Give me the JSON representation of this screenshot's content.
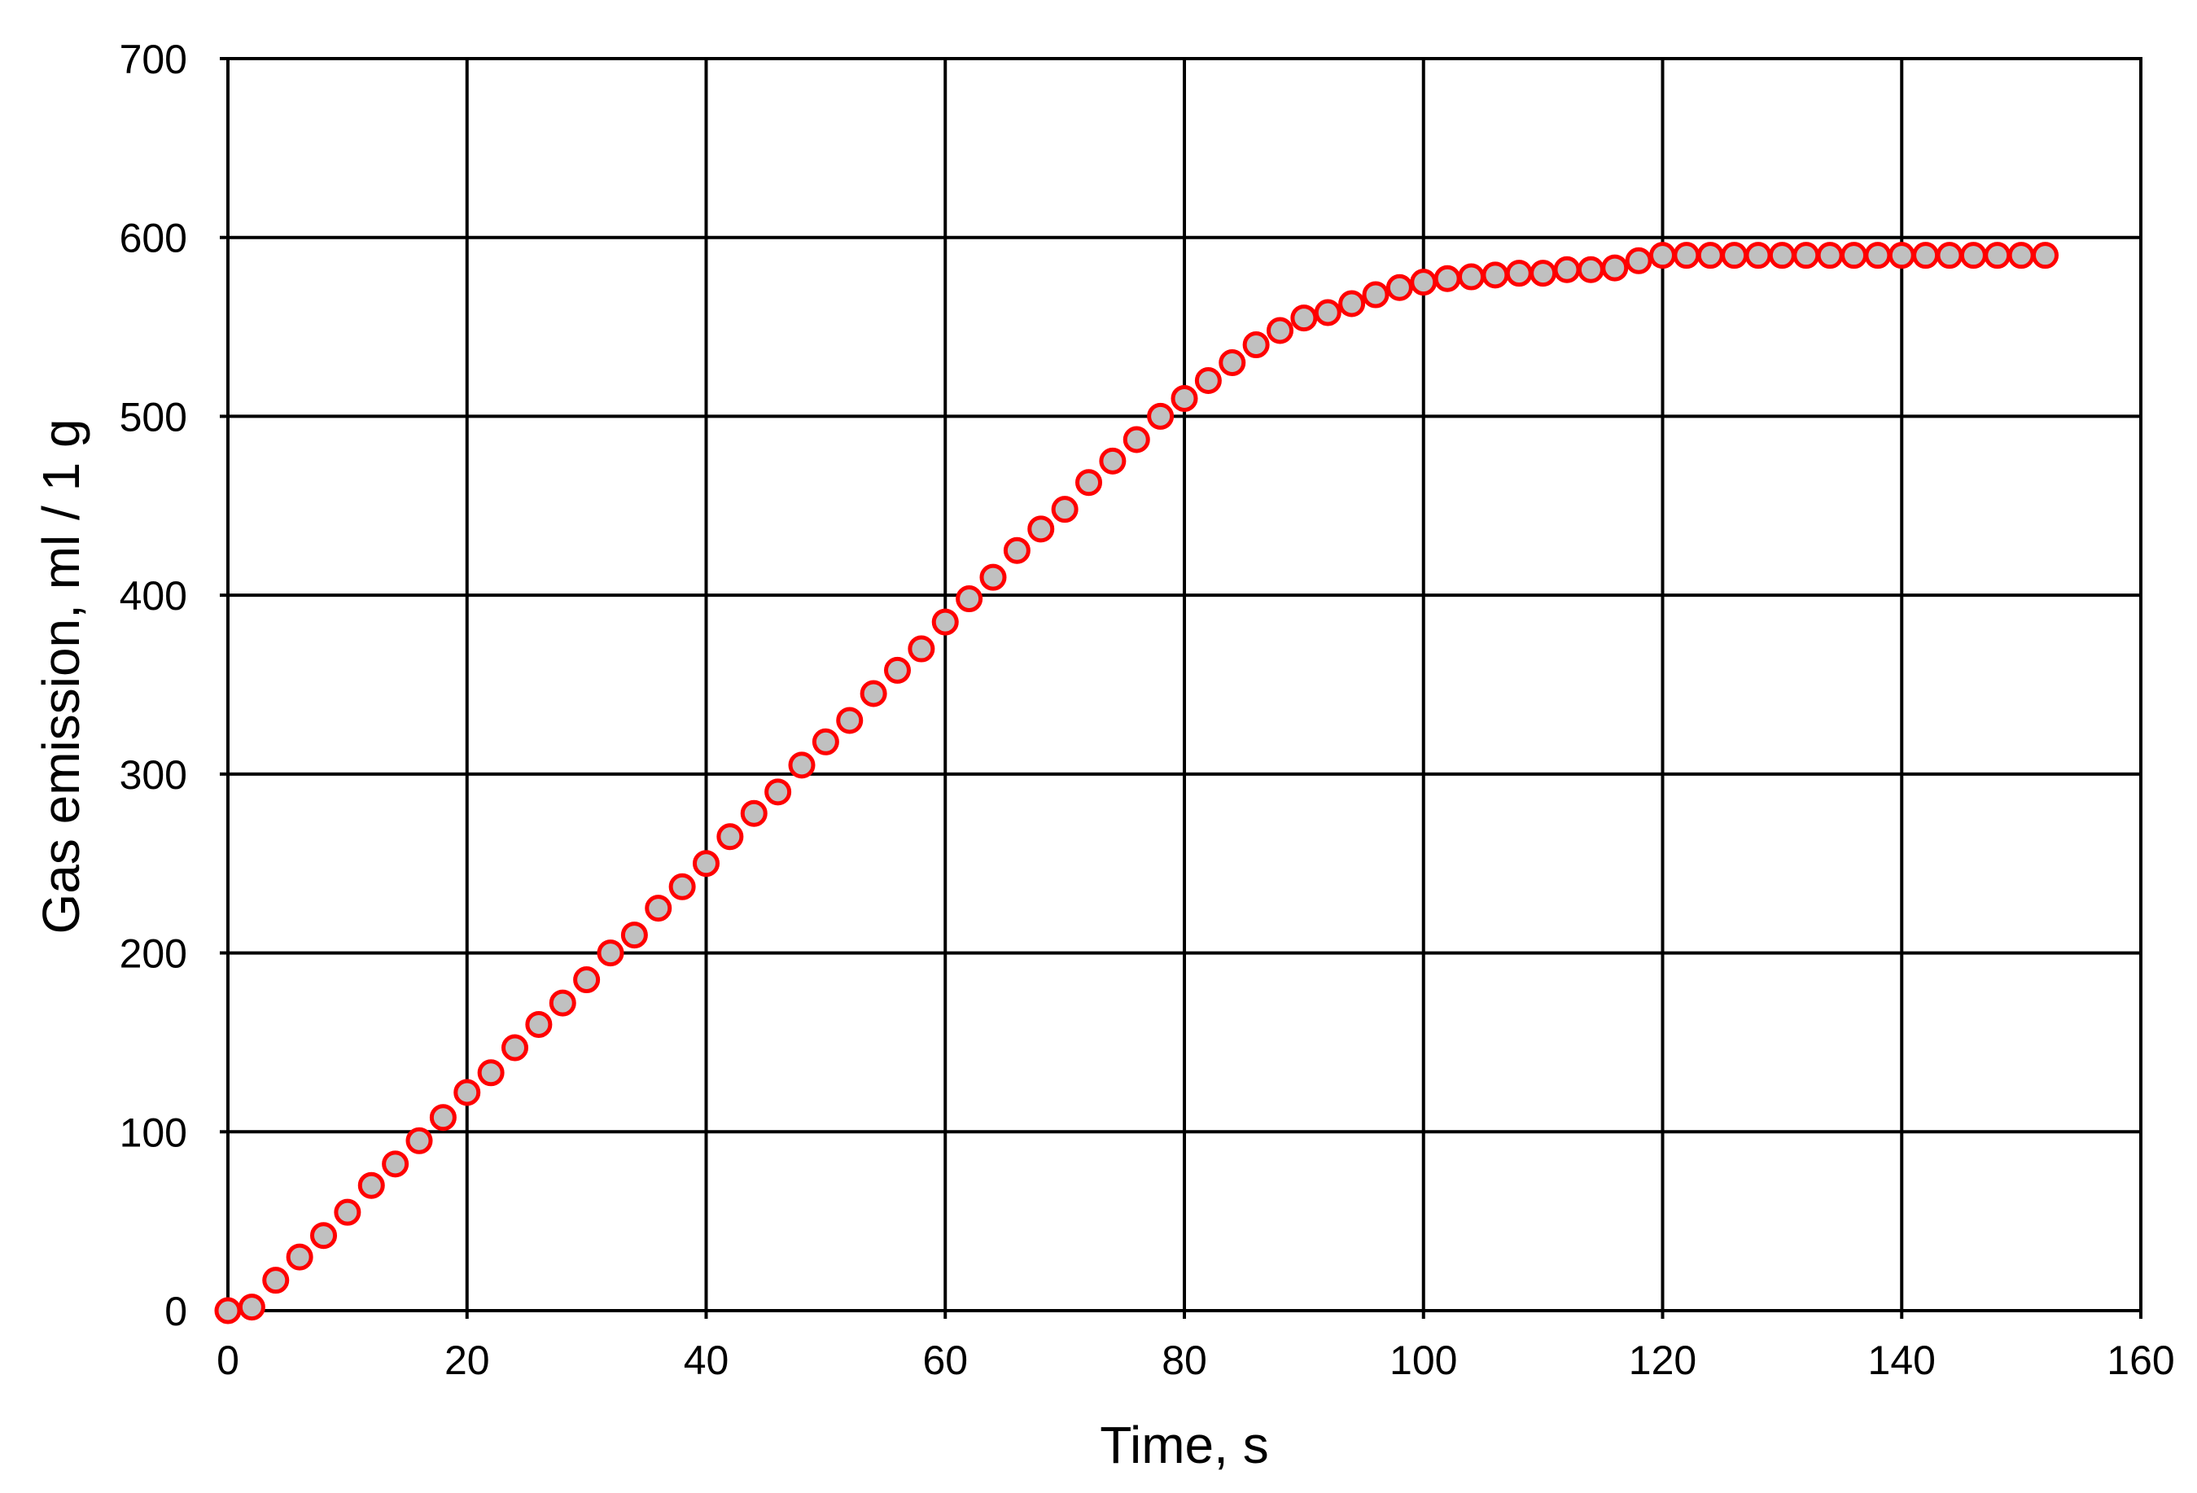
{
  "chart_data": {
    "type": "scatter",
    "title": "",
    "xlabel": "Time, s",
    "ylabel": "Gas emission, ml / 1 g",
    "xlim": [
      0,
      160
    ],
    "ylim": [
      0,
      700
    ],
    "xticks": [
      "0",
      "20",
      "40",
      "60",
      "80",
      "100",
      "120",
      "140",
      "160"
    ],
    "yticks": [
      "0",
      "100",
      "200",
      "300",
      "400",
      "500",
      "600",
      "700"
    ],
    "grid": true,
    "legend": "none",
    "colors": {
      "marker_fill": "#c0c0c0",
      "marker_stroke": "#ff0000",
      "grid": "#000000"
    },
    "series": [
      {
        "x": [
          0,
          2,
          4,
          6,
          8,
          10,
          12,
          14,
          16,
          18,
          20,
          22,
          24,
          26,
          28,
          30,
          32,
          34,
          36,
          38,
          40,
          42,
          44,
          46,
          48,
          50,
          52,
          54,
          56,
          58,
          60,
          62,
          64,
          66,
          68,
          70,
          72,
          74,
          76,
          78,
          80,
          82,
          84,
          86,
          88,
          90,
          92,
          94,
          96,
          98,
          100,
          102,
          104,
          106,
          108,
          110,
          112,
          114,
          116,
          118,
          120,
          122,
          124,
          126,
          128,
          130,
          132,
          134,
          136,
          138,
          140,
          142,
          144,
          146,
          148,
          150,
          152
        ],
        "y": [
          0,
          2,
          17,
          30,
          42,
          55,
          70,
          82,
          95,
          108,
          122,
          133,
          147,
          160,
          172,
          185,
          200,
          210,
          225,
          237,
          250,
          265,
          278,
          290,
          305,
          318,
          330,
          345,
          358,
          370,
          385,
          398,
          410,
          425,
          437,
          448,
          463,
          475,
          487,
          500,
          510,
          520,
          530,
          540,
          548,
          555,
          558,
          563,
          568,
          572,
          575,
          577,
          578,
          579,
          580,
          580,
          582,
          582,
          583,
          587,
          590,
          590,
          590,
          590,
          590,
          590,
          590,
          590,
          590,
          590,
          590,
          590,
          590,
          590,
          590,
          590,
          590
        ]
      }
    ]
  }
}
